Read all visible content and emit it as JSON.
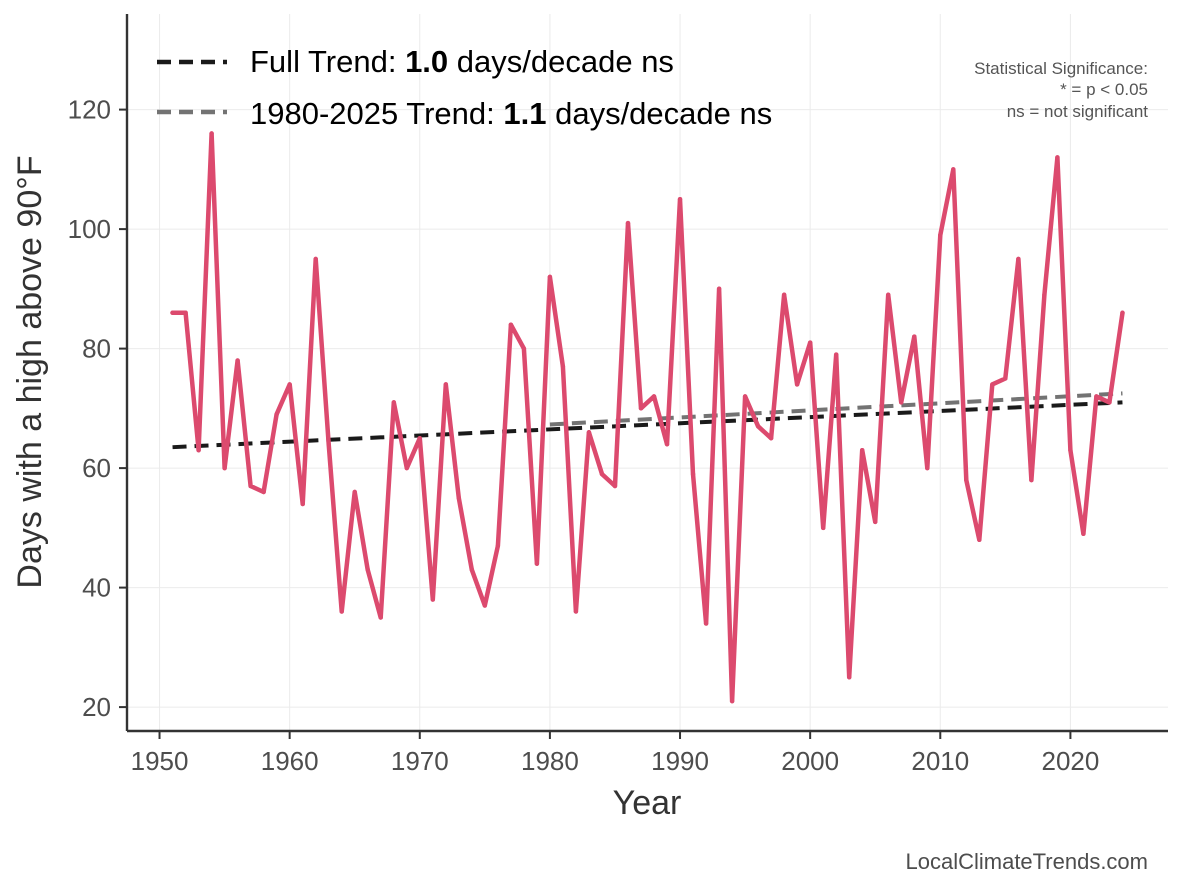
{
  "chart_data": {
    "type": "line",
    "title": "",
    "xlabel": "Year",
    "ylabel": "Days with a high above 90°F",
    "xlim": [
      1947.5,
      2027.5
    ],
    "ylim": [
      16,
      136
    ],
    "x_ticks": [
      1950,
      1960,
      1970,
      1980,
      1990,
      2000,
      2010,
      2020
    ],
    "y_ticks": [
      20,
      40,
      60,
      80,
      100,
      120
    ],
    "grid": true,
    "legend_position": "top-left",
    "series": [
      {
        "name": "Days with a high above 90°F",
        "color": "#DC4A6E",
        "x": [
          1951,
          1952,
          1953,
          1954,
          1955,
          1956,
          1957,
          1958,
          1959,
          1960,
          1961,
          1962,
          1963,
          1964,
          1965,
          1966,
          1967,
          1968,
          1969,
          1970,
          1971,
          1972,
          1973,
          1974,
          1975,
          1976,
          1977,
          1978,
          1979,
          1980,
          1981,
          1982,
          1983,
          1984,
          1985,
          1986,
          1987,
          1988,
          1989,
          1990,
          1991,
          1992,
          1993,
          1994,
          1995,
          1996,
          1997,
          1998,
          1999,
          2000,
          2001,
          2002,
          2003,
          2004,
          2005,
          2006,
          2007,
          2008,
          2009,
          2010,
          2011,
          2012,
          2013,
          2014,
          2015,
          2016,
          2017,
          2018,
          2019,
          2020,
          2021,
          2022,
          2023,
          2024
        ],
        "values": [
          86,
          86,
          63,
          116,
          60,
          78,
          57,
          56,
          69,
          74,
          54,
          95,
          64,
          36,
          56,
          43,
          35,
          71,
          60,
          65,
          38,
          74,
          55,
          43,
          37,
          47,
          84,
          80,
          44,
          92,
          77,
          36,
          66,
          59,
          57,
          101,
          70,
          72,
          64,
          105,
          59,
          34,
          90,
          21,
          72,
          67,
          65,
          89,
          74,
          81,
          50,
          79,
          25,
          63,
          51,
          89,
          71,
          82,
          60,
          99,
          110,
          58,
          48,
          74,
          75,
          95,
          58,
          89,
          112,
          63,
          49,
          72,
          71,
          86
        ]
      }
    ],
    "trends": [
      {
        "name": "Full Trend",
        "color": "#1a1a1a",
        "x_range": [
          1951,
          2024
        ],
        "y_range": [
          63.5,
          71.0
        ],
        "label_prefix": "Full Trend: ",
        "label_value": "1.0",
        "label_suffix": " days/decade ns"
      },
      {
        "name": "1980-2025 Trend",
        "color": "#737373",
        "x_range": [
          1980,
          2024
        ],
        "y_range": [
          67.3,
          72.5
        ],
        "label_prefix": "1980-2025 Trend: ",
        "label_value": "1.1",
        "label_suffix": " days/decade ns"
      }
    ],
    "annotation": {
      "line1": "Statistical Significance:",
      "line2": "* = p < 0.05",
      "line3": "ns = not significant"
    },
    "caption": "LocalClimateTrends.com"
  }
}
